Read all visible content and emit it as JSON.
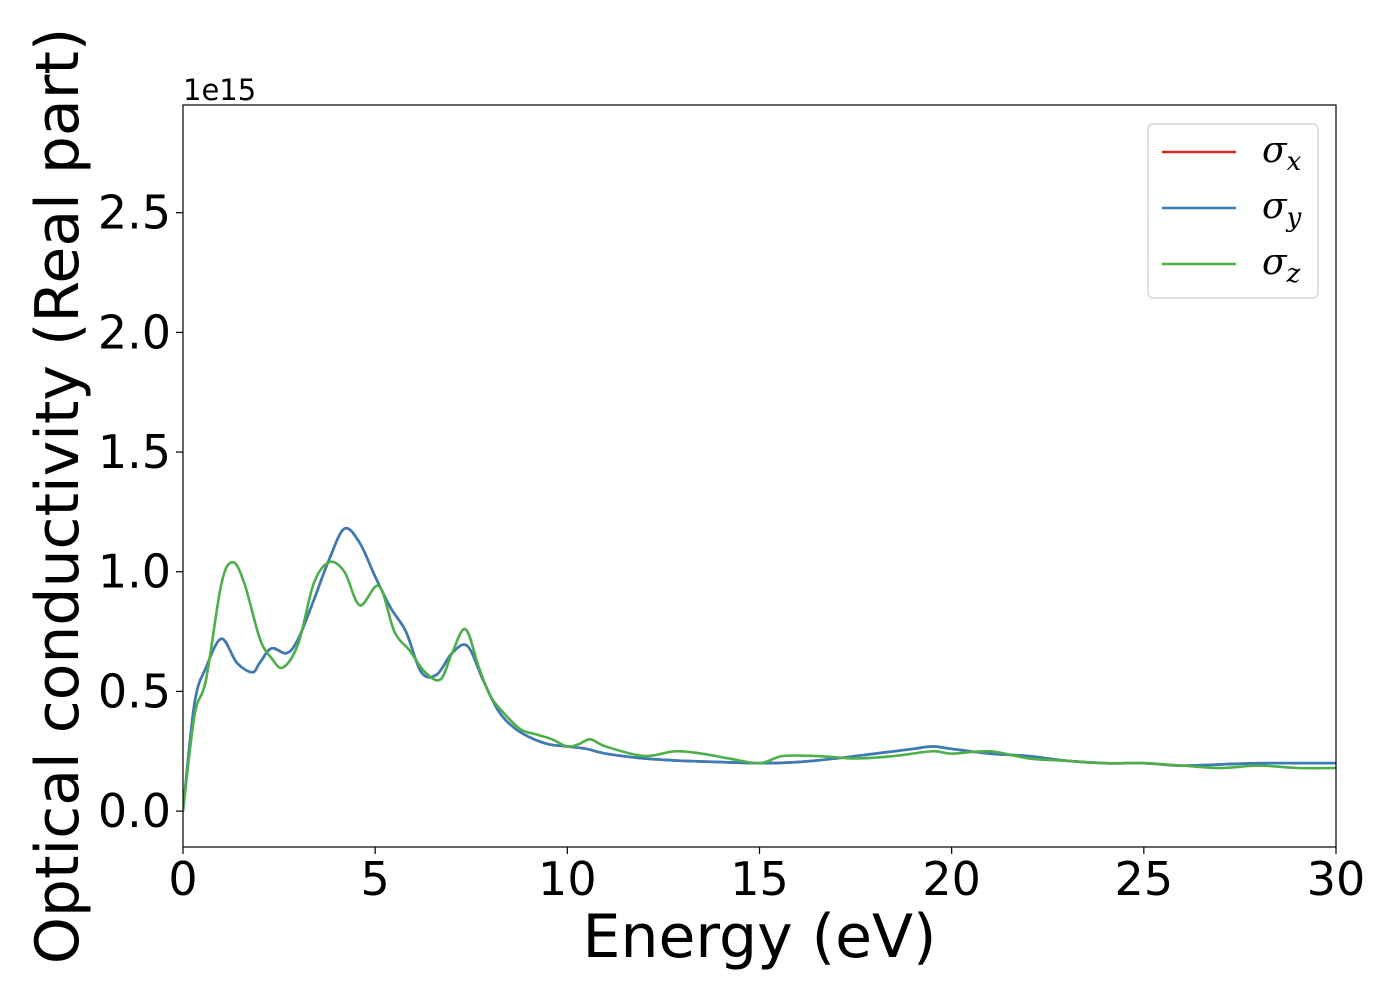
{
  "chart_data": {
    "type": "line",
    "xlabel": "Energy (eV)",
    "ylabel": "Optical conductivity (Real part)",
    "y_offset_label": "1e15",
    "xlim": [
      0,
      30
    ],
    "ylim": [
      -0.15,
      2.95
    ],
    "xticks": [
      0,
      5,
      10,
      15,
      20,
      25,
      30
    ],
    "yticks": [
      0.0,
      0.5,
      1.0,
      1.5,
      2.0,
      2.5
    ],
    "xtick_labels": [
      "0",
      "5",
      "10",
      "15",
      "20",
      "25",
      "30"
    ],
    "ytick_labels": [
      "0.0",
      "0.5",
      "1.0",
      "1.5",
      "2.0",
      "2.5"
    ],
    "grid": false,
    "legend_position": "top-right",
    "series": [
      {
        "name": "σx",
        "name_base": "σ",
        "name_sub": "x",
        "color": "#d62728",
        "x": [
          0,
          0.3,
          0.6,
          1.0,
          1.4,
          1.8,
          2.0,
          2.3,
          2.7,
          3.0,
          3.4,
          3.8,
          4.2,
          4.6,
          5.0,
          5.4,
          5.8,
          6.2,
          6.6,
          7.0,
          7.4,
          7.8,
          8.2,
          8.6,
          9.0,
          9.5,
          10.0,
          10.5,
          11,
          12,
          13,
          14,
          15,
          16,
          17,
          18,
          19,
          19.5,
          20,
          21,
          22,
          23,
          24,
          25,
          26,
          27,
          28,
          29,
          30
        ],
        "y": [
          0.0,
          0.45,
          0.6,
          0.72,
          0.62,
          0.58,
          0.62,
          0.68,
          0.66,
          0.72,
          0.88,
          1.05,
          1.18,
          1.12,
          0.98,
          0.85,
          0.75,
          0.58,
          0.57,
          0.66,
          0.69,
          0.55,
          0.42,
          0.35,
          0.31,
          0.28,
          0.27,
          0.26,
          0.24,
          0.22,
          0.21,
          0.205,
          0.2,
          0.205,
          0.22,
          0.24,
          0.26,
          0.27,
          0.26,
          0.24,
          0.23,
          0.21,
          0.2,
          0.2,
          0.19,
          0.195,
          0.2,
          0.2,
          0.2
        ]
      },
      {
        "name": "σy",
        "name_base": "σ",
        "name_sub": "y",
        "color": "#377eb8",
        "x": [
          0,
          0.3,
          0.6,
          1.0,
          1.4,
          1.8,
          2.0,
          2.3,
          2.7,
          3.0,
          3.4,
          3.8,
          4.2,
          4.6,
          5.0,
          5.4,
          5.8,
          6.2,
          6.6,
          7.0,
          7.4,
          7.8,
          8.2,
          8.6,
          9.0,
          9.5,
          10.0,
          10.5,
          11,
          12,
          13,
          14,
          15,
          16,
          17,
          18,
          19,
          19.5,
          20,
          21,
          22,
          23,
          24,
          25,
          26,
          27,
          28,
          29,
          30
        ],
        "y": [
          0.0,
          0.45,
          0.6,
          0.72,
          0.62,
          0.58,
          0.62,
          0.68,
          0.66,
          0.72,
          0.88,
          1.05,
          1.18,
          1.12,
          0.98,
          0.85,
          0.75,
          0.58,
          0.57,
          0.66,
          0.69,
          0.55,
          0.42,
          0.35,
          0.31,
          0.28,
          0.27,
          0.26,
          0.24,
          0.22,
          0.21,
          0.205,
          0.2,
          0.205,
          0.22,
          0.24,
          0.26,
          0.27,
          0.26,
          0.24,
          0.23,
          0.21,
          0.2,
          0.2,
          0.19,
          0.195,
          0.2,
          0.2,
          0.2
        ]
      },
      {
        "name": "σz",
        "name_base": "σ",
        "name_sub": "z",
        "color": "#4daf4a",
        "x": [
          0,
          0.3,
          0.6,
          1.0,
          1.3,
          1.6,
          2.0,
          2.3,
          2.6,
          3.0,
          3.4,
          3.8,
          4.2,
          4.6,
          5.1,
          5.5,
          5.9,
          6.3,
          6.7,
          7.0,
          7.35,
          7.7,
          8.0,
          8.4,
          8.8,
          9.2,
          9.6,
          10.0,
          10.3,
          10.6,
          11,
          12,
          12.8,
          13.5,
          14.2,
          15,
          15.6,
          16.5,
          17.5,
          18.5,
          19.5,
          20,
          21,
          22,
          23,
          24,
          25,
          26,
          27,
          28,
          29,
          30
        ],
        "y": [
          0.0,
          0.4,
          0.55,
          0.95,
          1.04,
          0.95,
          0.72,
          0.64,
          0.6,
          0.7,
          0.95,
          1.04,
          1.0,
          0.86,
          0.94,
          0.75,
          0.67,
          0.58,
          0.55,
          0.66,
          0.76,
          0.6,
          0.48,
          0.4,
          0.34,
          0.32,
          0.3,
          0.27,
          0.28,
          0.3,
          0.27,
          0.23,
          0.25,
          0.24,
          0.22,
          0.2,
          0.23,
          0.23,
          0.22,
          0.23,
          0.25,
          0.24,
          0.25,
          0.22,
          0.21,
          0.2,
          0.2,
          0.19,
          0.18,
          0.19,
          0.18,
          0.18
        ]
      }
    ]
  }
}
